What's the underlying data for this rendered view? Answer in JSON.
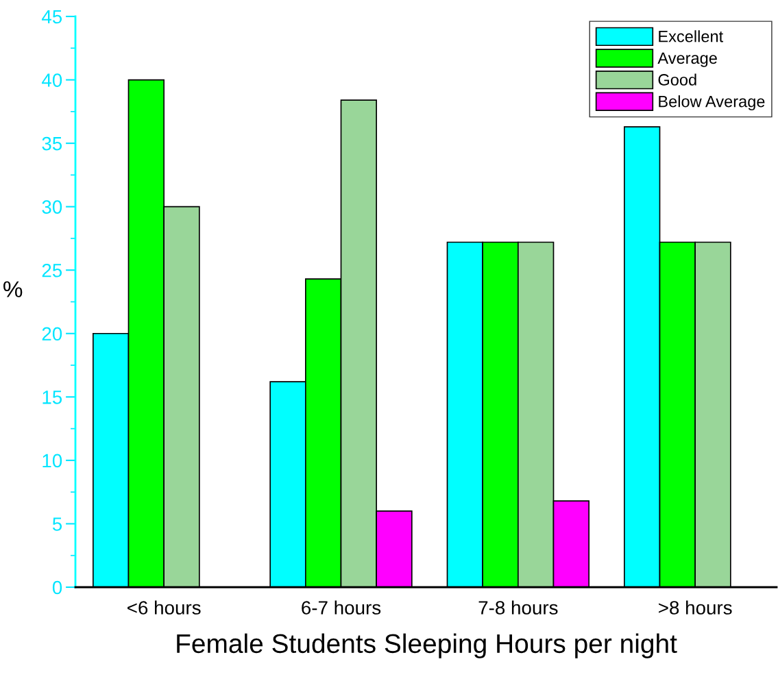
{
  "chart_data": {
    "type": "bar",
    "xlabel": "Female Students Sleeping Hours per night",
    "ylabel": "%",
    "categories": [
      "<6 hours",
      "6-7 hours",
      "7-8 hours",
      ">8 hours"
    ],
    "series": [
      {
        "name": "Excellent",
        "color": "#00ffff",
        "values": [
          20,
          16.2,
          27.2,
          36.3
        ]
      },
      {
        "name": "Average",
        "color": "#00ff00",
        "values": [
          40,
          24.3,
          27.2,
          27.2
        ]
      },
      {
        "name": "Good",
        "color": "#99d699",
        "values": [
          30,
          38.4,
          27.2,
          27.2
        ]
      },
      {
        "name": "Below Average",
        "color": "#ff00ff",
        "values": [
          null,
          6,
          6.8,
          null
        ]
      }
    ],
    "ylim": [
      0,
      45
    ],
    "yticks": [
      0,
      5,
      10,
      15,
      20,
      25,
      30,
      35,
      40,
      45
    ],
    "grid": false,
    "legend": "top right"
  }
}
